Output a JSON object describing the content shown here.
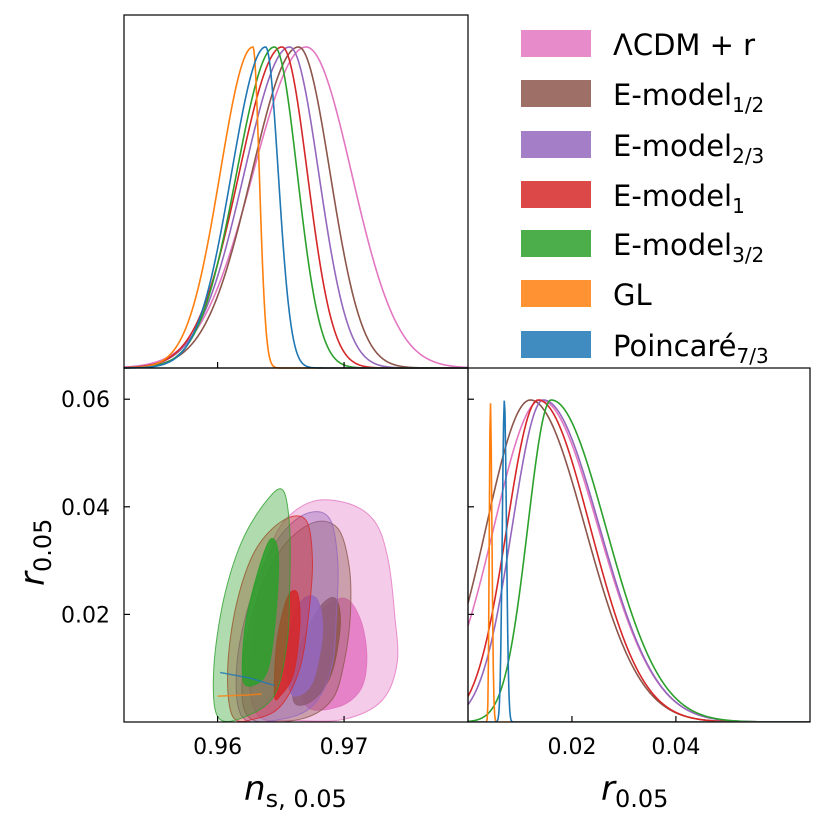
{
  "chart_data": {
    "type": "corner-triangle",
    "legend": {
      "position": "top-right",
      "entries": [
        {
          "key": "lcdm",
          "main": "ΛCDM + r",
          "sub": "",
          "color": "#e377c2"
        },
        {
          "key": "e12",
          "main": "E-model",
          "sub": "1/2",
          "color": "#8c564b"
        },
        {
          "key": "e23",
          "main": "E-model",
          "sub": "2/3",
          "color": "#9467bd"
        },
        {
          "key": "e1",
          "main": "E-model",
          "sub": "1",
          "color": "#d62728"
        },
        {
          "key": "e32",
          "main": "E-model",
          "sub": "3/2",
          "color": "#2ca02c"
        },
        {
          "key": "gl",
          "main": "GL",
          "sub": "",
          "color": "#ff7f0e"
        },
        {
          "key": "poinc",
          "main": "Poincaré",
          "sub": "7/3",
          "color": "#1f77b4"
        }
      ]
    },
    "axes": {
      "ns": {
        "label_main": "n",
        "label_sub": "s, 0.05",
        "range": [
          0.9526,
          0.9798
        ],
        "ticks": [
          0.96,
          0.97
        ],
        "tick_labels": [
          "0.96",
          "0.97"
        ]
      },
      "r": {
        "label_main": "r",
        "label_sub": "0.05",
        "range": [
          0.0,
          0.0658
        ],
        "ticks": [
          0.02,
          0.04,
          0.06
        ],
        "tick_labels": [
          "0.02",
          "0.04",
          "0.06"
        ],
        "ticks_x": [
          0.02,
          0.04
        ],
        "tick_labels_x": [
          "0.02",
          "0.04"
        ]
      }
    },
    "ns_posteriors": [
      {
        "key": "lcdm",
        "mean": 0.967,
        "sigma_left": 0.0042,
        "sigma_right": 0.0036
      },
      {
        "key": "e12",
        "mean": 0.9664,
        "sigma_left": 0.0037,
        "sigma_right": 0.0025
      },
      {
        "key": "e23",
        "mean": 0.9657,
        "sigma_left": 0.0036,
        "sigma_right": 0.0023
      },
      {
        "key": "e1",
        "mean": 0.9651,
        "sigma_left": 0.0034,
        "sigma_right": 0.002
      },
      {
        "key": "e32",
        "mean": 0.9645,
        "sigma_left": 0.003,
        "sigma_right": 0.0018
      },
      {
        "key": "gl",
        "mean": 0.9628,
        "sigma_left": 0.0026,
        "sigma_right": 0.0005
      },
      {
        "key": "poinc",
        "mean": 0.9638,
        "sigma_left": 0.0027,
        "sigma_right": 0.001
      }
    ],
    "r_posteriors": [
      {
        "key": "lcdm",
        "mode": 0.014,
        "sigma_left": 0.009,
        "sigma_right": 0.011
      },
      {
        "key": "e12",
        "mode": 0.012,
        "sigma_left": 0.0085,
        "sigma_right": 0.0105
      },
      {
        "key": "e23",
        "mode": 0.0145,
        "sigma_left": 0.006,
        "sigma_right": 0.0108
      },
      {
        "key": "e1",
        "mode": 0.0135,
        "sigma_left": 0.006,
        "sigma_right": 0.01
      },
      {
        "key": "e32",
        "mode": 0.016,
        "sigma_left": 0.0045,
        "sigma_right": 0.0105
      },
      {
        "key": "gl",
        "mode": 0.0043,
        "sigma_left": 0.0002,
        "sigma_right": 0.0003
      },
      {
        "key": "poinc",
        "mode": 0.007,
        "sigma_left": 0.0004,
        "sigma_right": 0.0004
      }
    ],
    "contours_2d": [
      {
        "key": "lcdm",
        "outer": [
          [
            0.9633,
            0.001
          ],
          [
            0.9625,
            0.008
          ],
          [
            0.9628,
            0.017
          ],
          [
            0.9636,
            0.028
          ],
          [
            0.965,
            0.0365
          ],
          [
            0.9675,
            0.041
          ],
          [
            0.9705,
            0.0405
          ],
          [
            0.9725,
            0.037
          ],
          [
            0.9735,
            0.03
          ],
          [
            0.974,
            0.02
          ],
          [
            0.9742,
            0.011
          ],
          [
            0.973,
            0.004
          ],
          [
            0.97,
            0.0005
          ],
          [
            0.966,
            0.0003
          ]
        ],
        "inner": [
          [
            0.967,
            0.003
          ],
          [
            0.9665,
            0.011
          ],
          [
            0.968,
            0.02
          ],
          [
            0.97,
            0.023
          ],
          [
            0.9713,
            0.019
          ],
          [
            0.9718,
            0.012
          ],
          [
            0.9713,
            0.006
          ],
          [
            0.9695,
            0.0028
          ]
        ]
      },
      {
        "key": "e12",
        "outer": [
          [
            0.9625,
            0.0008
          ],
          [
            0.962,
            0.01
          ],
          [
            0.963,
            0.022
          ],
          [
            0.965,
            0.032
          ],
          [
            0.9675,
            0.037
          ],
          [
            0.9695,
            0.036
          ],
          [
            0.9704,
            0.029
          ],
          [
            0.9705,
            0.02
          ],
          [
            0.97,
            0.011
          ],
          [
            0.969,
            0.004
          ],
          [
            0.9665,
            0.0005
          ]
        ],
        "inner": [
          [
            0.966,
            0.004
          ],
          [
            0.9664,
            0.013
          ],
          [
            0.968,
            0.021
          ],
          [
            0.9693,
            0.023
          ],
          [
            0.9697,
            0.018
          ],
          [
            0.969,
            0.009
          ],
          [
            0.9675,
            0.004
          ]
        ]
      },
      {
        "key": "e23",
        "outer": [
          [
            0.962,
            0.0008
          ],
          [
            0.9615,
            0.01
          ],
          [
            0.9625,
            0.022
          ],
          [
            0.9645,
            0.033
          ],
          [
            0.9668,
            0.0385
          ],
          [
            0.9688,
            0.038
          ],
          [
            0.9695,
            0.03
          ],
          [
            0.9694,
            0.02
          ],
          [
            0.969,
            0.01
          ],
          [
            0.9675,
            0.003
          ],
          [
            0.965,
            0.0005
          ]
        ],
        "inner": [
          [
            0.9657,
            0.006
          ],
          [
            0.9655,
            0.014
          ],
          [
            0.9665,
            0.022
          ],
          [
            0.9678,
            0.023
          ],
          [
            0.9683,
            0.017
          ],
          [
            0.9676,
            0.008
          ],
          [
            0.9665,
            0.005
          ]
        ]
      },
      {
        "key": "e1",
        "outer": [
          [
            0.9612,
            0.001
          ],
          [
            0.9608,
            0.01
          ],
          [
            0.9615,
            0.022
          ],
          [
            0.963,
            0.032
          ],
          [
            0.9652,
            0.0375
          ],
          [
            0.967,
            0.0375
          ],
          [
            0.9675,
            0.03
          ],
          [
            0.9672,
            0.02
          ],
          [
            0.9665,
            0.01
          ],
          [
            0.965,
            0.003
          ],
          [
            0.963,
            0.0006
          ]
        ],
        "inner": [
          [
            0.9645,
            0.005
          ],
          [
            0.9647,
            0.015
          ],
          [
            0.9655,
            0.023
          ],
          [
            0.9663,
            0.024
          ],
          [
            0.9665,
            0.018
          ],
          [
            0.966,
            0.009
          ],
          [
            0.965,
            0.005
          ]
        ]
      },
      {
        "key": "e32",
        "outer": [
          [
            0.96,
            0.001
          ],
          [
            0.9597,
            0.01
          ],
          [
            0.9605,
            0.023
          ],
          [
            0.962,
            0.034
          ],
          [
            0.964,
            0.0415
          ],
          [
            0.9652,
            0.043
          ],
          [
            0.9657,
            0.036
          ],
          [
            0.9657,
            0.025
          ],
          [
            0.9655,
            0.015
          ],
          [
            0.9645,
            0.005
          ],
          [
            0.962,
            0.0008
          ]
        ],
        "inner": [
          [
            0.962,
            0.008
          ],
          [
            0.9622,
            0.018
          ],
          [
            0.9632,
            0.028
          ],
          [
            0.9642,
            0.034
          ],
          [
            0.9648,
            0.031
          ],
          [
            0.9646,
            0.02
          ],
          [
            0.964,
            0.01
          ],
          [
            0.963,
            0.007
          ]
        ]
      }
    ],
    "lines_2d": [
      {
        "key": "gl",
        "points": [
          [
            0.96,
            0.0048
          ],
          [
            0.9622,
            0.005
          ],
          [
            0.9635,
            0.0052
          ]
        ]
      },
      {
        "key": "poinc",
        "points": [
          [
            0.9602,
            0.0092
          ],
          [
            0.9625,
            0.0082
          ],
          [
            0.9645,
            0.0068
          ]
        ]
      }
    ]
  }
}
